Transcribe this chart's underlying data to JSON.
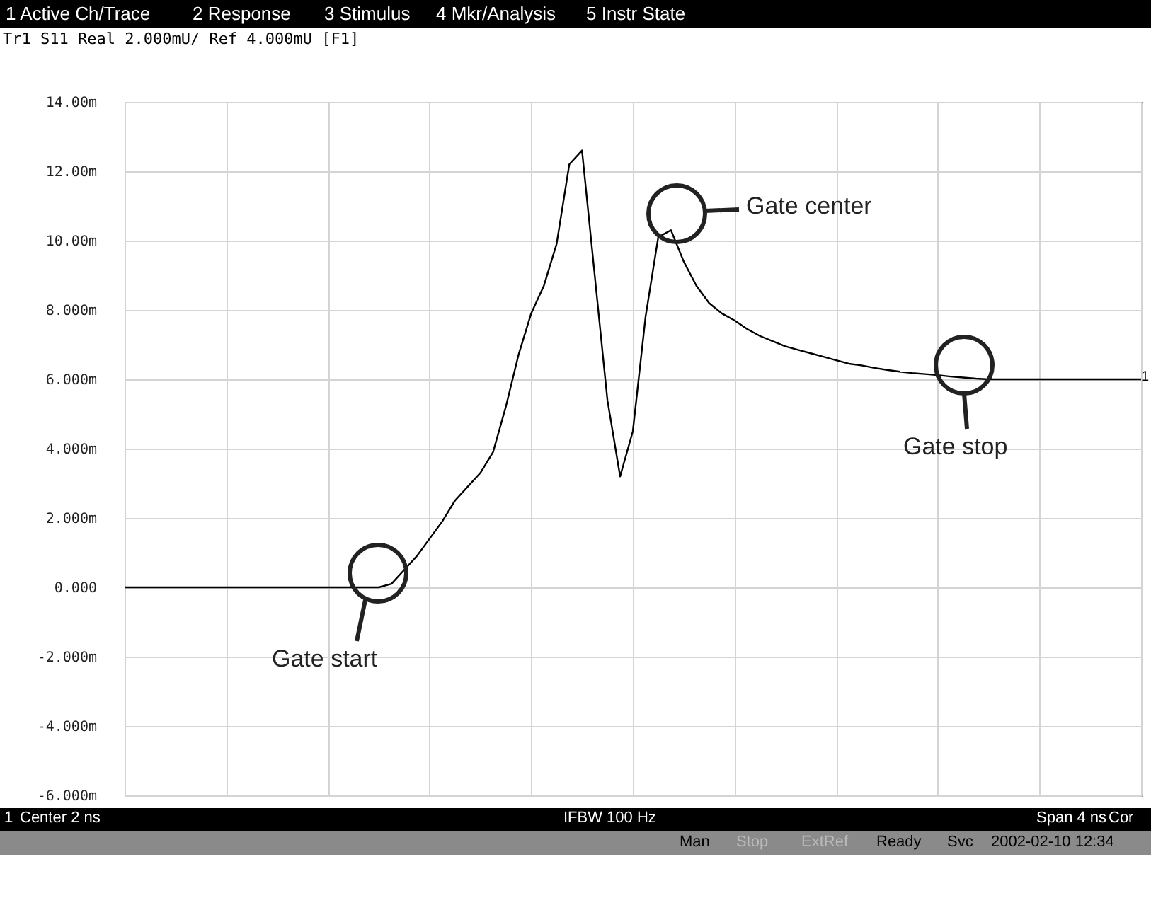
{
  "chart_data": {
    "type": "line",
    "title": "Tr1 S11 Real 2.000mU/ Ref 4.000mU [F1]",
    "categories": [
      null,
      null,
      null,
      null,
      null,
      null,
      null,
      null,
      null,
      null,
      null,
      null,
      null,
      null,
      null,
      null,
      null,
      null,
      null,
      null,
      null,
      null,
      null,
      null,
      null,
      null,
      null,
      null,
      null,
      null,
      null,
      null,
      null,
      null,
      null,
      null,
      null,
      null,
      null,
      null,
      null,
      null,
      null,
      null,
      null,
      null,
      null,
      null,
      null,
      null,
      null,
      null,
      null,
      null,
      null,
      null,
      null,
      null,
      null,
      null,
      null,
      null,
      null,
      null,
      null,
      null,
      null,
      null,
      null,
      null,
      null,
      null,
      null,
      null,
      null,
      null,
      null,
      null,
      null,
      null,
      null
    ],
    "values": [
      0,
      0,
      0,
      0,
      0,
      0,
      0,
      0,
      0,
      0,
      0,
      0,
      0,
      0,
      0,
      0,
      0,
      0,
      0,
      0,
      0,
      0.1,
      0.5,
      0.9,
      1.4,
      1.9,
      2.5,
      2.9,
      3.3,
      3.9,
      5.2,
      6.7,
      7.9,
      8.7,
      9.9,
      12.2,
      12.6,
      9.0,
      5.4,
      3.2,
      4.5,
      7.8,
      10.1,
      10.3,
      9.4,
      8.7,
      8.2,
      7.9,
      7.7,
      7.45,
      7.25,
      7.1,
      6.95,
      6.85,
      6.75,
      6.65,
      6.55,
      6.45,
      6.4,
      6.33,
      6.27,
      6.22,
      6.18,
      6.15,
      6.12,
      6.08,
      6.05,
      6.02,
      6.0,
      6.0,
      6.0,
      6.0,
      6.0,
      6.0,
      6.0,
      6.0,
      6.0,
      6.0,
      6.0,
      6.0,
      6.0
    ],
    "color": "#000000",
    "ylim": [
      -6,
      14
    ],
    "yticks": [
      {
        "value": -6,
        "label": "-6.000m"
      },
      {
        "value": -4,
        "label": "-4.000m"
      },
      {
        "value": -2,
        "label": "-2.000m"
      },
      {
        "value": 0,
        "label": "0.000"
      },
      {
        "value": 2,
        "label": "2.000m"
      },
      {
        "value": 4,
        "label": "4.000m"
      },
      {
        "value": 6,
        "label": "6.000m"
      },
      {
        "value": 8,
        "label": "8.000m"
      },
      {
        "value": 10,
        "label": "10.00m"
      },
      {
        "value": 12,
        "label": "12.00m"
      },
      {
        "value": 14,
        "label": "14.00m"
      }
    ],
    "grid": true,
    "tick_labels": "y",
    "annotations": [
      "1 Active Ch/Trace",
      "2 Response",
      "3 Stimulus",
      "4 Mkr/Analysis",
      "5 Instr State",
      "Gate start",
      "Gate center",
      "Gate stop",
      "1",
      "1",
      "Center 2 ns",
      "IFBW 100 Hz",
      "Span 4 ns",
      "Cor",
      "Man",
      "Stop",
      "ExtRef",
      "Ready",
      "Svc",
      "2002-02-10 12:34"
    ]
  }
}
